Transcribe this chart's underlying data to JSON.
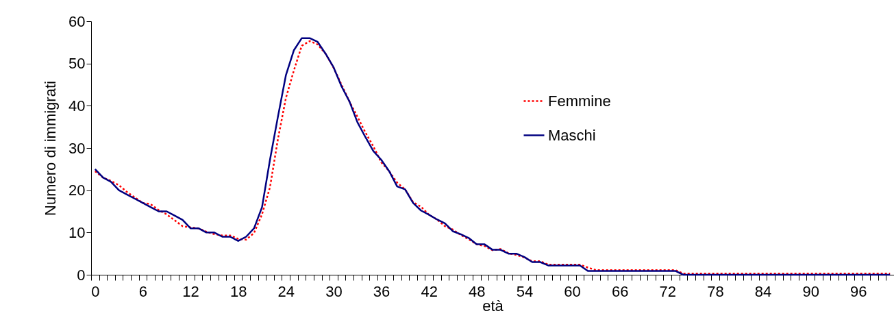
{
  "chart_data": {
    "type": "line",
    "xlabel": "età",
    "ylabel": "Numero di immigrati",
    "categories": [
      "0",
      null,
      null,
      null,
      null,
      null,
      "6",
      null,
      null,
      null,
      null,
      null,
      "12",
      null,
      null,
      null,
      null,
      null,
      "18",
      null,
      null,
      null,
      null,
      null,
      "24",
      null,
      null,
      null,
      null,
      null,
      "30",
      null,
      null,
      null,
      null,
      null,
      "36",
      null,
      null,
      null,
      null,
      null,
      "42",
      null,
      null,
      null,
      null,
      null,
      "48",
      null,
      null,
      null,
      null,
      null,
      "54",
      null,
      null,
      null,
      null,
      null,
      "60",
      null,
      null,
      null,
      null,
      null,
      "66",
      null,
      null,
      null,
      null,
      null,
      "72",
      null,
      null,
      null,
      null,
      null,
      "78",
      null,
      null,
      null,
      null,
      null,
      "84",
      null,
      null,
      null,
      null,
      null,
      "90",
      null,
      null,
      null,
      null,
      null,
      "96",
      null,
      null,
      null,
      null
    ],
    "series": [
      {
        "name": "Femmine",
        "color": "#ff0000",
        "line_style": "dotted",
        "values": [
          24.5,
          23,
          22.2,
          21.2,
          19.6,
          18.3,
          17,
          16.7,
          15.3,
          14.3,
          12.9,
          11.5,
          11.2,
          11,
          10.2,
          9.6,
          9.3,
          9.3,
          8.5,
          8.3,
          9.9,
          14.3,
          20.7,
          32.1,
          41.8,
          48.3,
          54.2,
          55.3,
          54.5,
          52.3,
          49,
          45,
          41,
          37.4,
          33.7,
          30.4,
          26.6,
          24.5,
          21.8,
          20.2,
          17.2,
          16.1,
          14.2,
          13.1,
          11.5,
          10.7,
          9.4,
          8.4,
          7.2,
          6.8,
          5.8,
          6.1,
          5.1,
          4.7,
          4.1,
          3.2,
          3.2,
          2.4,
          2.4,
          2.4,
          2.4,
          2.4,
          1.7,
          1.1,
          1.1,
          1.1,
          1.1,
          1.1,
          1.1,
          1.1,
          1.1,
          1.1,
          1.1,
          1.1,
          0.3,
          0.3,
          0.3,
          0.3,
          0.3,
          0.3,
          0.3,
          0.3,
          0.3,
          0.3,
          0.3,
          0.3,
          0.3,
          0.3,
          0.3,
          0.3,
          0.3,
          0.3,
          0.3,
          0.3,
          0.3,
          0.3,
          0.3,
          0.3,
          0.3,
          0.3,
          0.3
        ]
      },
      {
        "name": "Maschi",
        "color": "#000080",
        "line_style": "solid",
        "values": [
          25,
          23,
          22,
          20,
          19,
          18,
          17,
          16,
          15,
          15,
          14,
          13,
          11,
          11,
          10,
          10,
          9,
          9,
          8,
          9,
          11,
          16,
          27.2,
          37.4,
          47.2,
          53.1,
          56,
          56,
          55.1,
          52.3,
          49.1,
          44.6,
          41,
          36.1,
          32.6,
          29.3,
          27.2,
          24.5,
          20.9,
          20.2,
          17,
          15.2,
          14.2,
          13.1,
          12.2,
          10.3,
          9.6,
          8.7,
          7.2,
          7.2,
          5.9,
          5.9,
          5,
          5,
          4.2,
          3,
          3,
          2.2,
          2.2,
          2.2,
          2.2,
          2.2,
          0.9,
          0.9,
          0.9,
          0.9,
          0.9,
          0.9,
          0.9,
          0.9,
          0.9,
          0.9,
          0.9,
          0.9,
          0,
          0,
          0,
          0,
          0,
          0,
          0,
          0,
          0,
          0,
          0,
          0,
          0,
          0,
          0,
          0,
          0,
          0,
          0,
          0,
          0,
          0,
          0,
          0,
          0,
          0,
          0
        ]
      }
    ],
    "ylim": [
      0,
      60
    ],
    "yticks": [
      0,
      10,
      20,
      30,
      40,
      50,
      60
    ],
    "grid": false,
    "legend": "top right"
  }
}
